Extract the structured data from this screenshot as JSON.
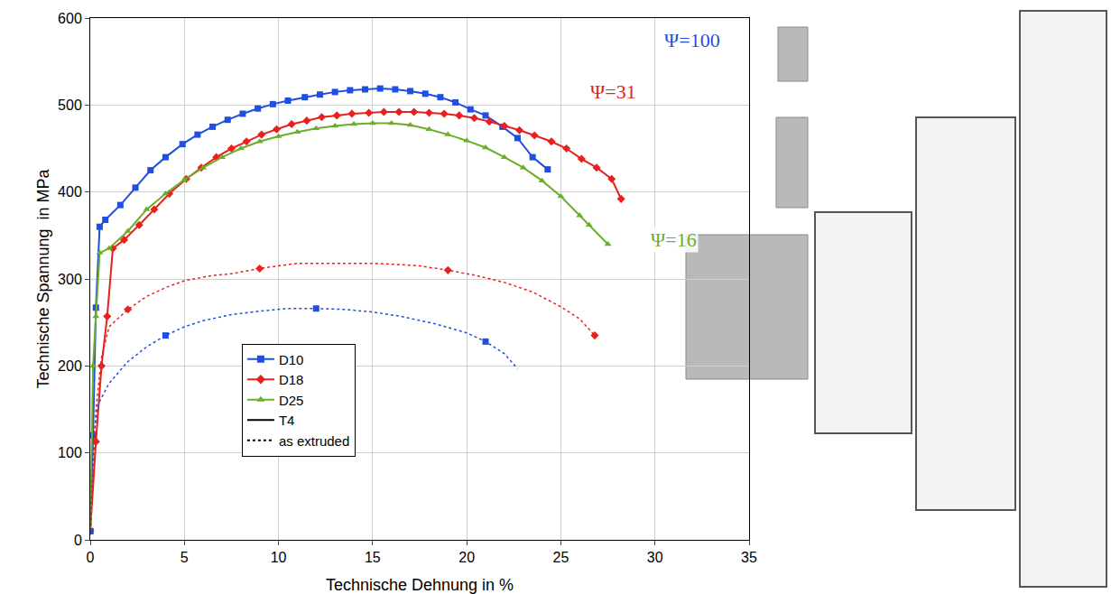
{
  "chart_data": {
    "type": "line",
    "x_label": "Technische Dehnung in %",
    "y_label": "Technische Spannung  in MPa",
    "xlim": [
      0,
      35
    ],
    "xticks": [
      0,
      5,
      10,
      15,
      20,
      25,
      30,
      35
    ],
    "ylim": [
      0,
      600
    ],
    "yticks": [
      0,
      100,
      200,
      300,
      400,
      500,
      600
    ],
    "grid": true,
    "legend": "lower left",
    "conditions": [
      {
        "name": "T4",
        "line_style": "solid"
      },
      {
        "name": "as extruded",
        "line_style": "dotted"
      }
    ],
    "series": [
      {
        "name": "D10",
        "condition": "T4",
        "color": "#1f4ee0",
        "marker": "square",
        "x": [
          0,
          0.15,
          0.3,
          0.5,
          0.8,
          1.6,
          2.4,
          3.2,
          4.0,
          4.9,
          5.7,
          6.5,
          7.3,
          8.1,
          8.9,
          9.7,
          10.5,
          11.4,
          12.2,
          13.0,
          13.8,
          14.6,
          15.4,
          16.2,
          17.0,
          17.8,
          18.6,
          19.4,
          20.2,
          21.0,
          21.9,
          22.7,
          23.5,
          24.3
        ],
        "values": [
          10,
          120,
          267,
          360,
          368,
          385,
          405,
          425,
          440,
          455,
          466,
          475,
          483,
          490,
          496,
          501,
          505,
          509,
          512,
          515,
          517,
          518,
          519,
          518,
          516,
          513,
          509,
          503,
          495,
          488,
          475,
          462,
          440,
          426
        ]
      },
      {
        "name": "D18",
        "condition": "T4",
        "color": "#e8201e",
        "marker": "diamond",
        "x": [
          0,
          0.3,
          0.6,
          0.9,
          1.2,
          1.8,
          2.6,
          3.4,
          4.2,
          5.1,
          5.9,
          6.7,
          7.5,
          8.3,
          9.1,
          9.9,
          10.7,
          11.5,
          12.3,
          13.1,
          13.9,
          14.8,
          15.6,
          16.4,
          17.2,
          18.0,
          18.8,
          19.6,
          20.4,
          21.2,
          22.0,
          22.8,
          23.6,
          24.5,
          25.3,
          26.1,
          26.9,
          27.7,
          28.2
        ],
        "values": [
          10,
          113,
          200,
          257,
          335,
          345,
          362,
          380,
          398,
          415,
          428,
          440,
          450,
          458,
          466,
          472,
          478,
          482,
          486,
          488,
          490,
          491,
          492,
          492,
          492,
          491,
          490,
          488,
          485,
          481,
          476,
          471,
          465,
          458,
          450,
          438,
          428,
          415,
          392
        ]
      },
      {
        "name": "D25",
        "condition": "T4",
        "color": "#6aae2a",
        "marker": "triangle",
        "x": [
          0,
          0.15,
          0.3,
          0.5,
          1.0,
          2.0,
          3.0,
          4.0,
          5.0,
          6.0,
          7.0,
          8.0,
          9.0,
          10.0,
          11.0,
          12.0,
          13.0,
          14.0,
          15.0,
          16.0,
          17.0,
          18.0,
          19.0,
          20.0,
          21.0,
          22.0,
          23.0,
          24.0,
          25.0,
          26.0,
          26.5,
          27.5
        ],
        "values": [
          10,
          200,
          257,
          330,
          335,
          355,
          380,
          398,
          414,
          428,
          440,
          450,
          458,
          464,
          469,
          473,
          476,
          478,
          479,
          479,
          477,
          472,
          466,
          459,
          451,
          440,
          428,
          413,
          395,
          373,
          362,
          340
        ]
      },
      {
        "name": "D10",
        "condition": "as extruded",
        "color": "#1f4ee0",
        "marker": "square",
        "x": [
          0,
          0.2,
          0.4,
          1,
          2,
          3,
          4,
          5,
          6,
          7.5,
          9,
          10.5,
          12,
          13.5,
          15,
          16.5,
          18.4,
          20,
          21,
          22,
          22.7
        ],
        "values": [
          10,
          120,
          155,
          180,
          205,
          222,
          235,
          245,
          252,
          259,
          263,
          266,
          266,
          265,
          262,
          257,
          248,
          238,
          228,
          214,
          197
        ]
      },
      {
        "name": "D18",
        "condition": "as extruded",
        "color": "#e8201e",
        "marker": "diamond",
        "x": [
          0,
          0.3,
          0.6,
          1,
          2,
          3,
          4,
          5,
          6.5,
          7.5,
          9,
          11,
          13,
          15,
          16,
          17.5,
          19,
          20.5,
          22,
          23.5,
          25,
          26,
          26.8
        ],
        "values": [
          10,
          150,
          210,
          245,
          265,
          280,
          290,
          298,
          304,
          306,
          312,
          318,
          318,
          318,
          317,
          315,
          310,
          304,
          296,
          285,
          268,
          254,
          235
        ]
      }
    ],
    "annotations": [
      {
        "text": "Ψ=100",
        "x": 32,
        "y": 575,
        "color": "#1f4ee0"
      },
      {
        "text": "Ψ=31",
        "x": 27.8,
        "y": 515,
        "color": "#e8201e"
      },
      {
        "text": "Ψ=16",
        "x": 31,
        "y": 345,
        "color": "#6aae2a"
      }
    ]
  }
}
